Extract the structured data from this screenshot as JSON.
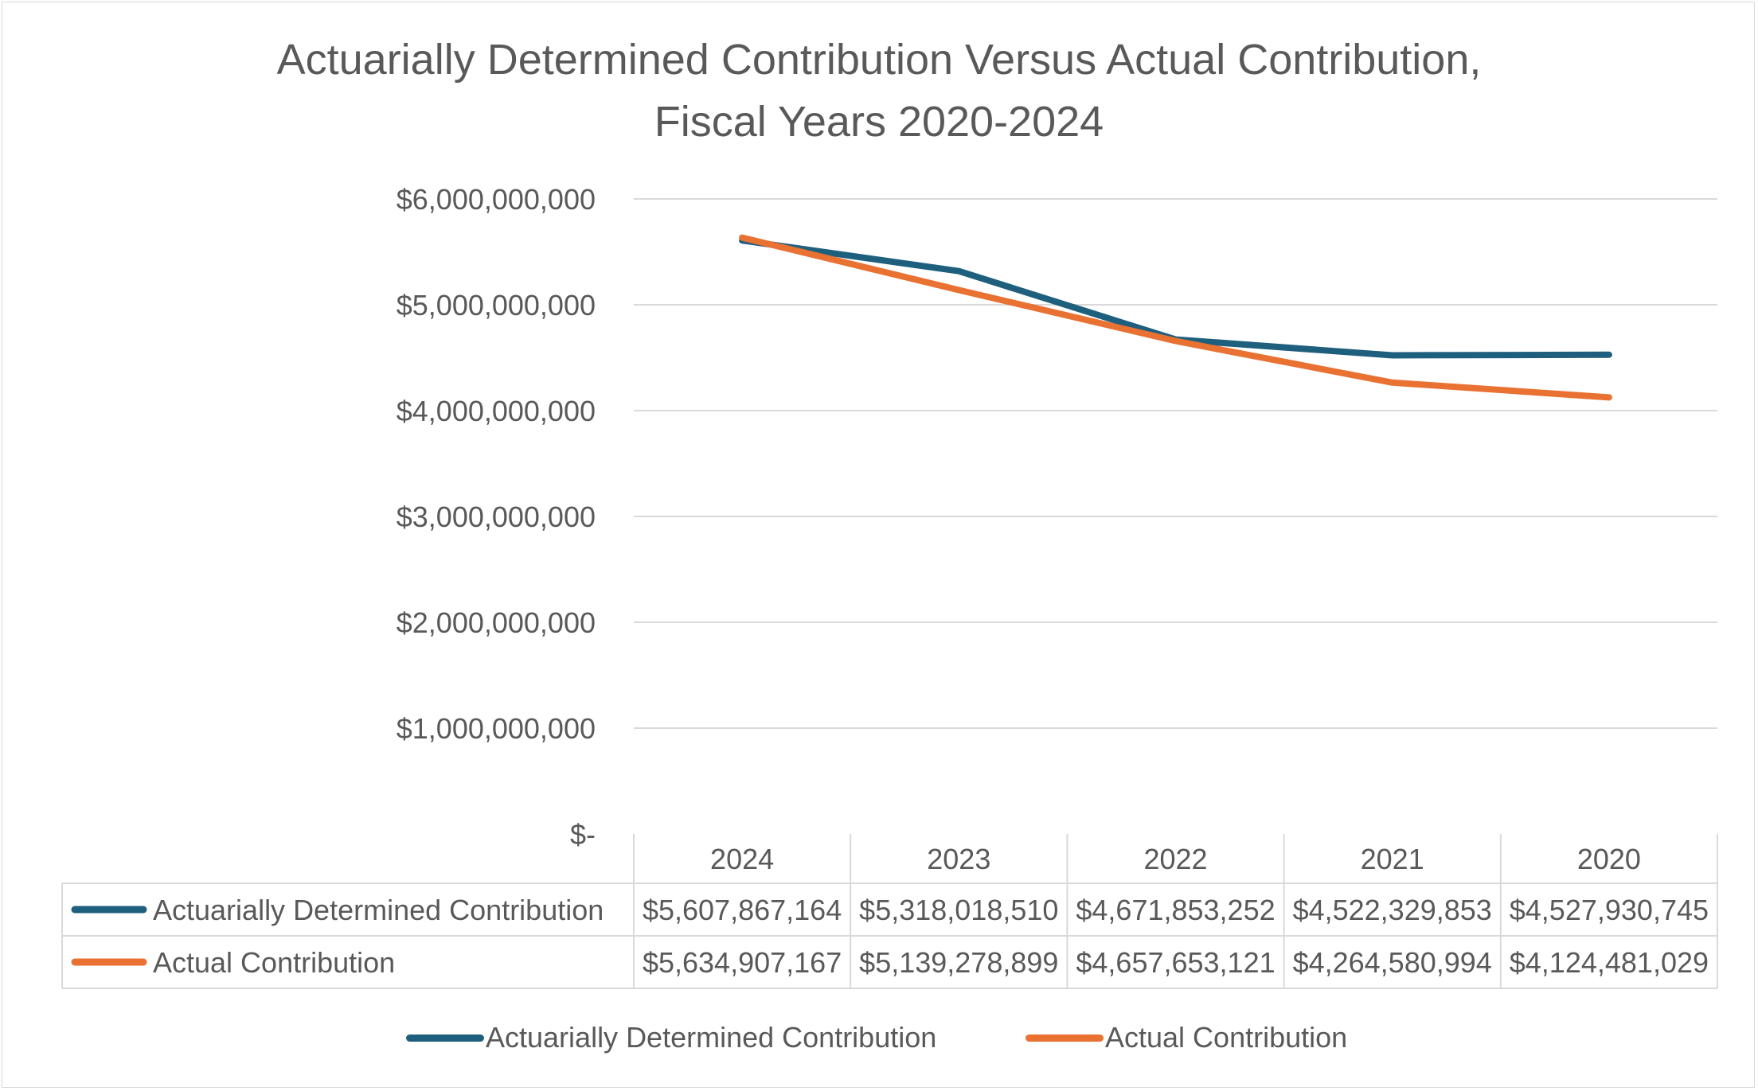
{
  "chart_data": {
    "type": "line",
    "title_line1": "Actuarially Determined Contribution Versus Actual Contribution,",
    "title_line2": "Fiscal Years 2020-2024",
    "categories": [
      "2024",
      "2023",
      "2022",
      "2021",
      "2020"
    ],
    "y_ticks": [
      "$6,000,000,000",
      "$5,000,000,000",
      "$4,000,000,000",
      "$3,000,000,000",
      "$2,000,000,000",
      "$1,000,000,000",
      "$-"
    ],
    "ylim": [
      0,
      6000000000
    ],
    "grid": true,
    "data_table": true,
    "legend_position": "bottom",
    "series": [
      {
        "name": "Actuarially Determined Contribution",
        "color": "#1f5f7e",
        "values": [
          5607867164,
          5318018510,
          4671853252,
          4522329853,
          4527930745
        ],
        "labels": [
          "$5,607,867,164",
          "$5,318,018,510",
          "$4,671,853,252",
          "$4,522,329,853",
          "$4,527,930,745"
        ]
      },
      {
        "name": "Actual Contribution",
        "color": "#e97132",
        "values": [
          5634907167,
          5139278899,
          4657653121,
          4264580994,
          4124481029
        ],
        "labels": [
          "$5,634,907,167",
          "$5,139,278,899",
          "$4,657,653,121",
          "$4,264,580,994",
          "$4,124,481,029"
        ]
      }
    ]
  }
}
